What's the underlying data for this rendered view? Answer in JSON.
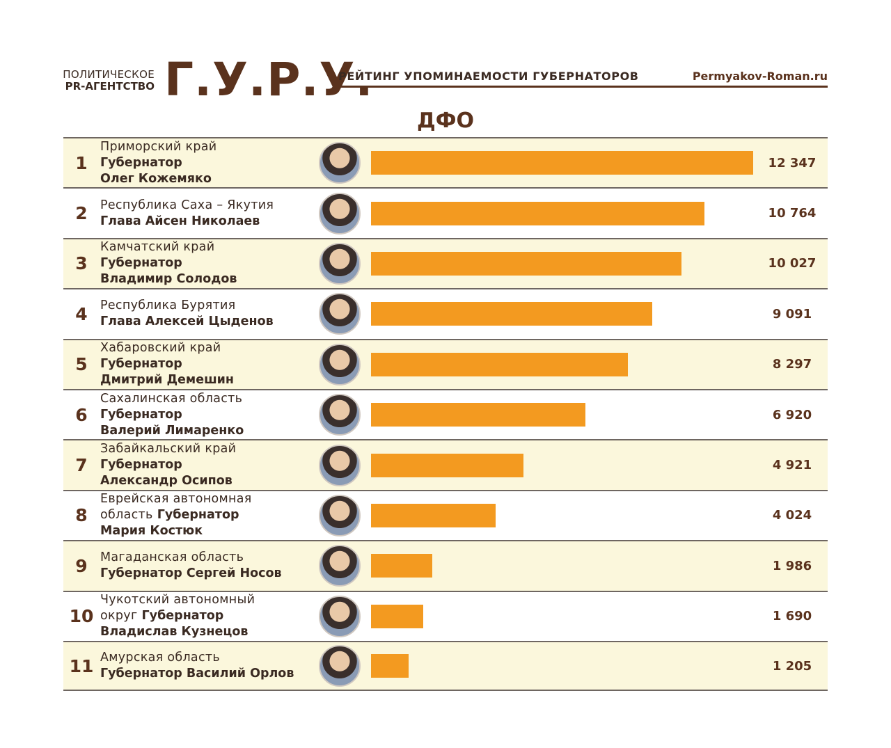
{
  "header": {
    "agency_line1": "ПОЛИТИЧЕСКОЕ",
    "agency_line2": "PR-АГЕНТСТВО",
    "logo": "Г.У.Р.У.",
    "subtitle": "РЕЙТИНГ УПОМИНАЕМОСТИ ГУБЕРНАТОРОВ",
    "site": "Permyakov-Roman.ru"
  },
  "chart_data": {
    "type": "bar",
    "orientation": "horizontal",
    "title": "ДФО",
    "colors": {
      "bar": "#f39a20",
      "row_alt": "#fbf7dc",
      "text": "#5a321d"
    },
    "categories": [
      "Приморский край Губернатор Олег Кожемяко",
      "Республика Саха – Якутия Глава Айсен Николаев",
      "Камчатский край Губернатор Владимир Солодов",
      "Республика Бурятия Глава Алексей Цыденов",
      "Хабаровский край Губернатор Дмитрий Демешин",
      "Сахалинская область Губернатор Валерий Лимаренко",
      "Забайкальский край Губернатор Александр Осипов",
      "Еврейская автономная область Губернатор Мария Костюк",
      "Магаданская область Губернатор Сергей Носов",
      "Чукотский автономный округ Губернатор Владислав Кузнецов",
      "Амурская область Губернатор Василий Орлов"
    ],
    "values": [
      12347,
      10764,
      10027,
      9091,
      8297,
      6920,
      4921,
      4024,
      1986,
      1690,
      1205
    ],
    "xlim": [
      0,
      12347
    ],
    "rows": [
      {
        "rank": "1",
        "lines": [
          {
            "t": "Приморский край",
            "b": false
          },
          {
            "t": "Губернатор",
            "b": true
          },
          {
            "t": "Олег Кожемяко",
            "b": true
          }
        ],
        "value_label": "12 347"
      },
      {
        "rank": "2",
        "lines": [
          {
            "t": "Республика Саха – Якутия",
            "b": false
          },
          {
            "t": "Глава Айсен Николаев",
            "b": true
          }
        ],
        "value_label": "10 764"
      },
      {
        "rank": "3",
        "lines": [
          {
            "t": "Камчатский край",
            "b": false
          },
          {
            "t": "Губернатор",
            "b": true
          },
          {
            "t": "Владимир Солодов",
            "b": true
          }
        ],
        "value_label": "10 027"
      },
      {
        "rank": "4",
        "lines": [
          {
            "t": "Республика Бурятия",
            "b": false
          },
          {
            "t": "Глава Алексей Цыденов",
            "b": true
          }
        ],
        "value_label": "9 091"
      },
      {
        "rank": "5",
        "lines": [
          {
            "t": "Хабаровский край",
            "b": false
          },
          {
            "t": "Губернатор",
            "b": true
          },
          {
            "t": "Дмитрий Демешин",
            "b": true
          }
        ],
        "value_label": "8 297"
      },
      {
        "rank": "6",
        "lines": [
          {
            "t": "Сахалинская область",
            "b": false
          },
          {
            "t": "Губернатор",
            "b": true
          },
          {
            "t": "Валерий Лимаренко",
            "b": true
          }
        ],
        "value_label": "6 920"
      },
      {
        "rank": "7",
        "lines": [
          {
            "t": "Забайкальский край",
            "b": false
          },
          {
            "t": "Губернатор",
            "b": true
          },
          {
            "t": "Александр Осипов",
            "b": true
          }
        ],
        "value_label": "4 921"
      },
      {
        "rank": "8",
        "lines": [
          {
            "t": "Еврейская автономная",
            "b": false
          },
          {
            "t": "область",
            "b": false,
            "t2": " Губернатор"
          },
          {
            "t": "Мария Костюк",
            "b": true
          }
        ],
        "value_label": "4 024"
      },
      {
        "rank": "9",
        "lines": [
          {
            "t": "Магаданская область",
            "b": false
          },
          {
            "t": "Губернатор Сергей Носов",
            "b": true
          }
        ],
        "value_label": "1 986"
      },
      {
        "rank": "10",
        "lines": [
          {
            "t": "Чукотский автономный",
            "b": false
          },
          {
            "t": "округ",
            "b": false,
            "t2": " Губернатор"
          },
          {
            "t": "Владислав Кузнецов",
            "b": true
          }
        ],
        "value_label": "1 690"
      },
      {
        "rank": "11",
        "lines": [
          {
            "t": "Амурская область",
            "b": false
          },
          {
            "t": "Губернатор Василий Орлов",
            "b": true
          }
        ],
        "value_label": "1 205"
      }
    ]
  }
}
